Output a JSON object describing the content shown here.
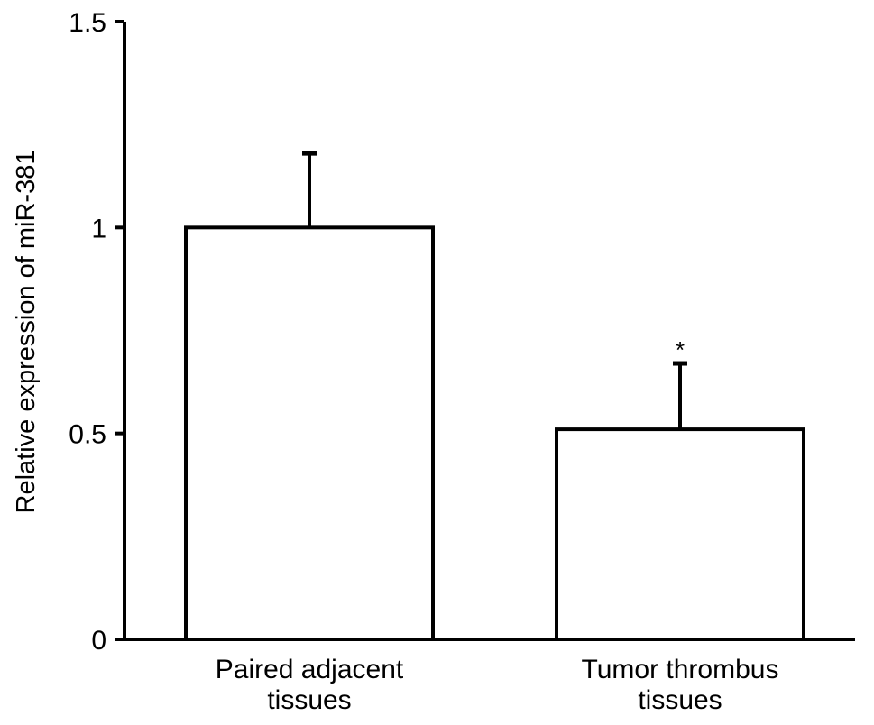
{
  "chart_data": {
    "type": "bar",
    "title": "",
    "xlabel": "",
    "ylabel": "Relative expression of miR-381",
    "ylim": [
      0,
      1.5
    ],
    "yticks": [
      {
        "value": 0,
        "label": "0"
      },
      {
        "value": 0.5,
        "label": "0.5"
      },
      {
        "value": 1,
        "label": "1"
      },
      {
        "value": 1.5,
        "label": "1.5"
      }
    ],
    "categories": [
      {
        "lines": [
          "Paired adjacent",
          "tissues"
        ]
      },
      {
        "lines": [
          "Tumor thrombus",
          "tissues"
        ]
      }
    ],
    "values": [
      1.0,
      0.51
    ],
    "error_upper": [
      0.18,
      0.16
    ],
    "significance": [
      "",
      "*"
    ],
    "bar_fill": "#ffffff",
    "bar_stroke": "#000000",
    "grid": false,
    "legend": "none"
  }
}
